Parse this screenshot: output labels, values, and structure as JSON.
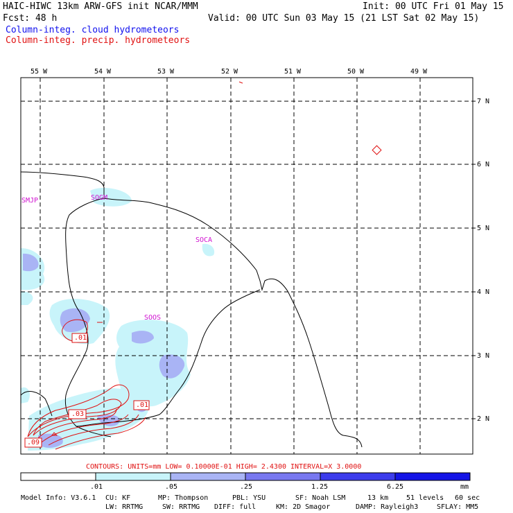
{
  "header": {
    "title": "HAIC-HIWC 13km ARW-GFS init   NCAR/MMM",
    "init": "Init: 00 UTC Fri 01 May 15",
    "fcst": "Fcst:   48 h",
    "valid": "Valid: 00 UTC Sun 03 May 15 (21 LST Sat 02 May 15)",
    "legend_cloud": "Column-integ. cloud hydrometeors",
    "legend_precip": "Column-integ. precip. hydrometeors"
  },
  "map": {
    "lon_labels": [
      "55 W",
      "54 W",
      "53 W",
      "52 W",
      "51 W",
      "50 W",
      "49 W"
    ],
    "lat_labels": [
      "7 N",
      "6 N",
      "5 N",
      "4 N",
      "3 N",
      "2 N"
    ],
    "stations": [
      "SMJP",
      "SOGM",
      "SOCA",
      "SOOS"
    ],
    "contour_labels": [
      ".01",
      ".03",
      ".01",
      ".09"
    ]
  },
  "contours_line": {
    "text": "CONTOURS:  UNITS=mm  LOW= 0.10000E-01  HIGH=  2.4300     INTERVAL=X  3.0000"
  },
  "colorbar": {
    "levels": [
      ".01",
      ".05",
      ".25",
      "1.25",
      "6.25"
    ],
    "unit": "mm",
    "colors": [
      "#ffffff",
      "#c8f4fa",
      "#a9b4f5",
      "#7878f0",
      "#3c3cec",
      "#1414e6"
    ]
  },
  "footer": {
    "line1": [
      "Model Info: V3.6.1",
      "CU: KF",
      "MP: Thompson",
      "PBL: YSU",
      "SF: Noah LSM",
      "13 km",
      "51 levels",
      "60 sec"
    ],
    "line2": [
      "LW: RRTMG",
      "SW: RRTMG",
      "DIFF: full",
      "KM: 2D Smagor",
      "DAMP: Rayleigh3",
      "SFLAY: MM5"
    ]
  }
}
